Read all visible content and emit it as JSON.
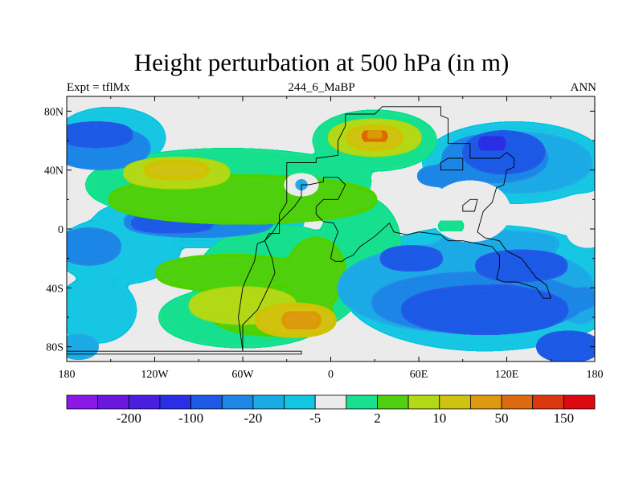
{
  "title": "Height perturbation at 500 hPa (in m)",
  "subtitle_left": "Expt = tflMx",
  "subtitle_center": "244_6_MaBP",
  "subtitle_right": "ANN",
  "colors": {
    "background": "#ffffff",
    "coastline": "#000000",
    "zero_band": "#ebebeb"
  },
  "chart_data": {
    "type": "heatmap",
    "title": "Height perturbation at 500 hPa (in m)",
    "field": "500 hPa geopotential height perturbation (m)",
    "x_ticks": [
      "180",
      "120W",
      "60W",
      "0",
      "60E",
      "120E",
      "180"
    ],
    "x_tick_values": [
      -180,
      -120,
      -60,
      0,
      60,
      120,
      180
    ],
    "y_ticks": [
      "80N",
      "40N",
      "0",
      "40S",
      "80S"
    ],
    "y_tick_values": [
      80,
      40,
      0,
      -40,
      -80
    ],
    "xlim": [
      -180,
      180
    ],
    "ylim": [
      -90,
      90
    ],
    "colorbar": {
      "labels": [
        "-200",
        "-100",
        "-20",
        "-5",
        "2",
        "10",
        "50",
        "150"
      ],
      "colors": [
        "#8a18e6",
        "#6a18e0",
        "#4a1ee0",
        "#2a2ee6",
        "#1e5ae6",
        "#1e86e6",
        "#1aaae6",
        "#12c6e2",
        "#ebebeb",
        "#18e08e",
        "#50d010",
        "#b2d816",
        "#d0c210",
        "#dc9a10",
        "#dc6a10",
        "#dc3810",
        "#dc0a10"
      ],
      "label_after_bin": [
        1,
        3,
        5,
        7,
        9,
        11,
        13,
        15
      ]
    },
    "contours": [
      {
        "level": -3,
        "blobs": [
          [
            -157,
            55,
            32,
            12
          ],
          [
            -90,
            5,
            50,
            8
          ],
          [
            -165,
            -12,
            20,
            10
          ]
        ]
      },
      {
        "level": -4,
        "blobs": [
          [
            -160,
            64,
            24,
            6
          ],
          [
            -108,
            4,
            28,
            4
          ]
        ]
      },
      {
        "level": 2,
        "blobs": [
          [
            -60,
            20,
            90,
            14
          ],
          [
            -68,
            -30,
            50,
            10
          ],
          [
            -10,
            -30,
            18,
            22
          ],
          [
            -40,
            -58,
            40,
            12
          ]
        ]
      },
      {
        "level": 3,
        "blobs": [
          [
            -105,
            38,
            35,
            8
          ],
          [
            30,
            62,
            30,
            10
          ],
          [
            -60,
            -52,
            35,
            10
          ]
        ]
      },
      {
        "level": 4,
        "blobs": [
          [
            -105,
            40,
            22,
            4
          ],
          [
            30,
            62,
            18,
            6
          ],
          [
            -24,
            -62,
            26,
            9
          ]
        ]
      },
      {
        "level": 5,
        "blobs": [
          [
            -20,
            -62,
            12,
            5
          ]
        ]
      },
      {
        "level": 6,
        "blobs": [
          [
            30,
            63,
            8,
            3
          ]
        ]
      },
      {
        "level": 5,
        "blobs": [
          [
            30,
            64,
            5,
            2
          ]
        ]
      },
      {
        "level": -2,
        "blobs": [
          [
            92,
            -40,
            85,
            28
          ],
          [
            128,
            45,
            48,
            18
          ],
          [
            115,
            -10,
            40,
            6
          ],
          [
            170,
            -50,
            12,
            12
          ]
        ]
      },
      {
        "level": -3,
        "blobs": [
          [
            112,
            48,
            34,
            14
          ],
          [
            100,
            -50,
            70,
            18
          ],
          [
            80,
            36,
            20,
            5
          ],
          [
            173,
            -47,
            7,
            5
          ]
        ]
      },
      {
        "level": -4,
        "blobs": [
          [
            118,
            52,
            26,
            12
          ],
          [
            105,
            -55,
            55,
            14
          ],
          [
            162,
            -80,
            20,
            8
          ],
          [
            55,
            -20,
            20,
            6
          ],
          [
            130,
            -25,
            30,
            8
          ]
        ]
      },
      {
        "level": -5,
        "blobs": [
          [
            110,
            58,
            8,
            4
          ]
        ]
      },
      {
        "level": 0,
        "blobs": [
          [
            95,
            12,
            25,
            18
          ],
          [
            -20,
            30,
            10,
            5
          ],
          [
            175,
            -2,
            12,
            8
          ]
        ]
      },
      {
        "level": -2,
        "blobs": [
          [
            -20,
            30,
            4,
            2
          ],
          [
            -172,
            -80,
            12,
            6
          ]
        ]
      },
      {
        "level": 1,
        "blobs": [
          [
            82,
            2,
            8,
            3
          ]
        ]
      }
    ],
    "continents": [
      [
        [
          -180,
          -85
        ],
        [
          -180,
          -83
        ],
        [
          -20,
          -83
        ],
        [
          -20,
          -85
        ]
      ],
      [
        [
          -60,
          -83
        ],
        [
          -60,
          -65
        ],
        [
          -50,
          -55
        ],
        [
          -45,
          -45
        ],
        [
          -38,
          -30
        ],
        [
          -40,
          -20
        ],
        [
          -45,
          -8
        ],
        [
          -42,
          -3
        ],
        [
          -35,
          -3
        ],
        [
          -35,
          10
        ],
        [
          -30,
          18
        ],
        [
          -30,
          45
        ],
        [
          -10,
          45
        ],
        [
          -10,
          48
        ],
        [
          5,
          50
        ],
        [
          5,
          60
        ],
        [
          10,
          70
        ],
        [
          10,
          78
        ],
        [
          30,
          78
        ],
        [
          35,
          83
        ],
        [
          75,
          83
        ],
        [
          75,
          77
        ],
        [
          80,
          75
        ],
        [
          80,
          58
        ],
        [
          95,
          58
        ],
        [
          95,
          48
        ],
        [
          115,
          48
        ],
        [
          120,
          52
        ],
        [
          125,
          48
        ],
        [
          125,
          42
        ],
        [
          120,
          40
        ],
        [
          118,
          30
        ],
        [
          113,
          28
        ],
        [
          110,
          18
        ],
        [
          104,
          12
        ],
        [
          100,
          -2
        ],
        [
          105,
          -6
        ],
        [
          115,
          -8
        ],
        [
          120,
          -15
        ],
        [
          130,
          -20
        ],
        [
          140,
          -33
        ],
        [
          147,
          -38
        ],
        [
          150,
          -47
        ],
        [
          145,
          -47
        ],
        [
          140,
          -40
        ],
        [
          127,
          -36
        ],
        [
          118,
          -36
        ],
        [
          113,
          -34
        ],
        [
          115,
          -26
        ],
        [
          115,
          -18
        ],
        [
          110,
          -12
        ],
        [
          100,
          -10
        ],
        [
          90,
          -8
        ],
        [
          80,
          -8
        ],
        [
          75,
          -4
        ],
        [
          60,
          -2
        ],
        [
          52,
          -4
        ],
        [
          43,
          -2
        ],
        [
          40,
          4
        ],
        [
          30,
          -5
        ],
        [
          20,
          -12
        ],
        [
          15,
          -18
        ],
        [
          10,
          -20
        ],
        [
          8,
          -22
        ],
        [
          3,
          -22
        ],
        [
          0,
          -20
        ],
        [
          2,
          -10
        ],
        [
          5,
          -2
        ],
        [
          2,
          4
        ],
        [
          -5,
          5
        ],
        [
          -10,
          10
        ],
        [
          -10,
          15
        ],
        [
          -5,
          20
        ],
        [
          5,
          20
        ],
        [
          10,
          30
        ],
        [
          5,
          35
        ],
        [
          -5,
          35
        ],
        [
          -5,
          32
        ],
        [
          -15,
          30
        ],
        [
          -20,
          30
        ],
        [
          -20,
          22
        ],
        [
          -25,
          15
        ],
        [
          -30,
          10
        ],
        [
          -35,
          5
        ],
        [
          -40,
          -3
        ],
        [
          -45,
          -8
        ],
        [
          -50,
          -10
        ],
        [
          -52,
          -22
        ],
        [
          -58,
          -35
        ],
        [
          -60,
          -40
        ],
        [
          -63,
          -60
        ],
        [
          -60,
          -83
        ]
      ],
      [
        [
          75,
          40
        ],
        [
          90,
          40
        ],
        [
          90,
          48
        ],
        [
          80,
          48
        ],
        [
          75,
          45
        ]
      ],
      [
        [
          90,
          12
        ],
        [
          98,
          12
        ],
        [
          100,
          20
        ],
        [
          95,
          20
        ],
        [
          90,
          16
        ]
      ]
    ]
  }
}
